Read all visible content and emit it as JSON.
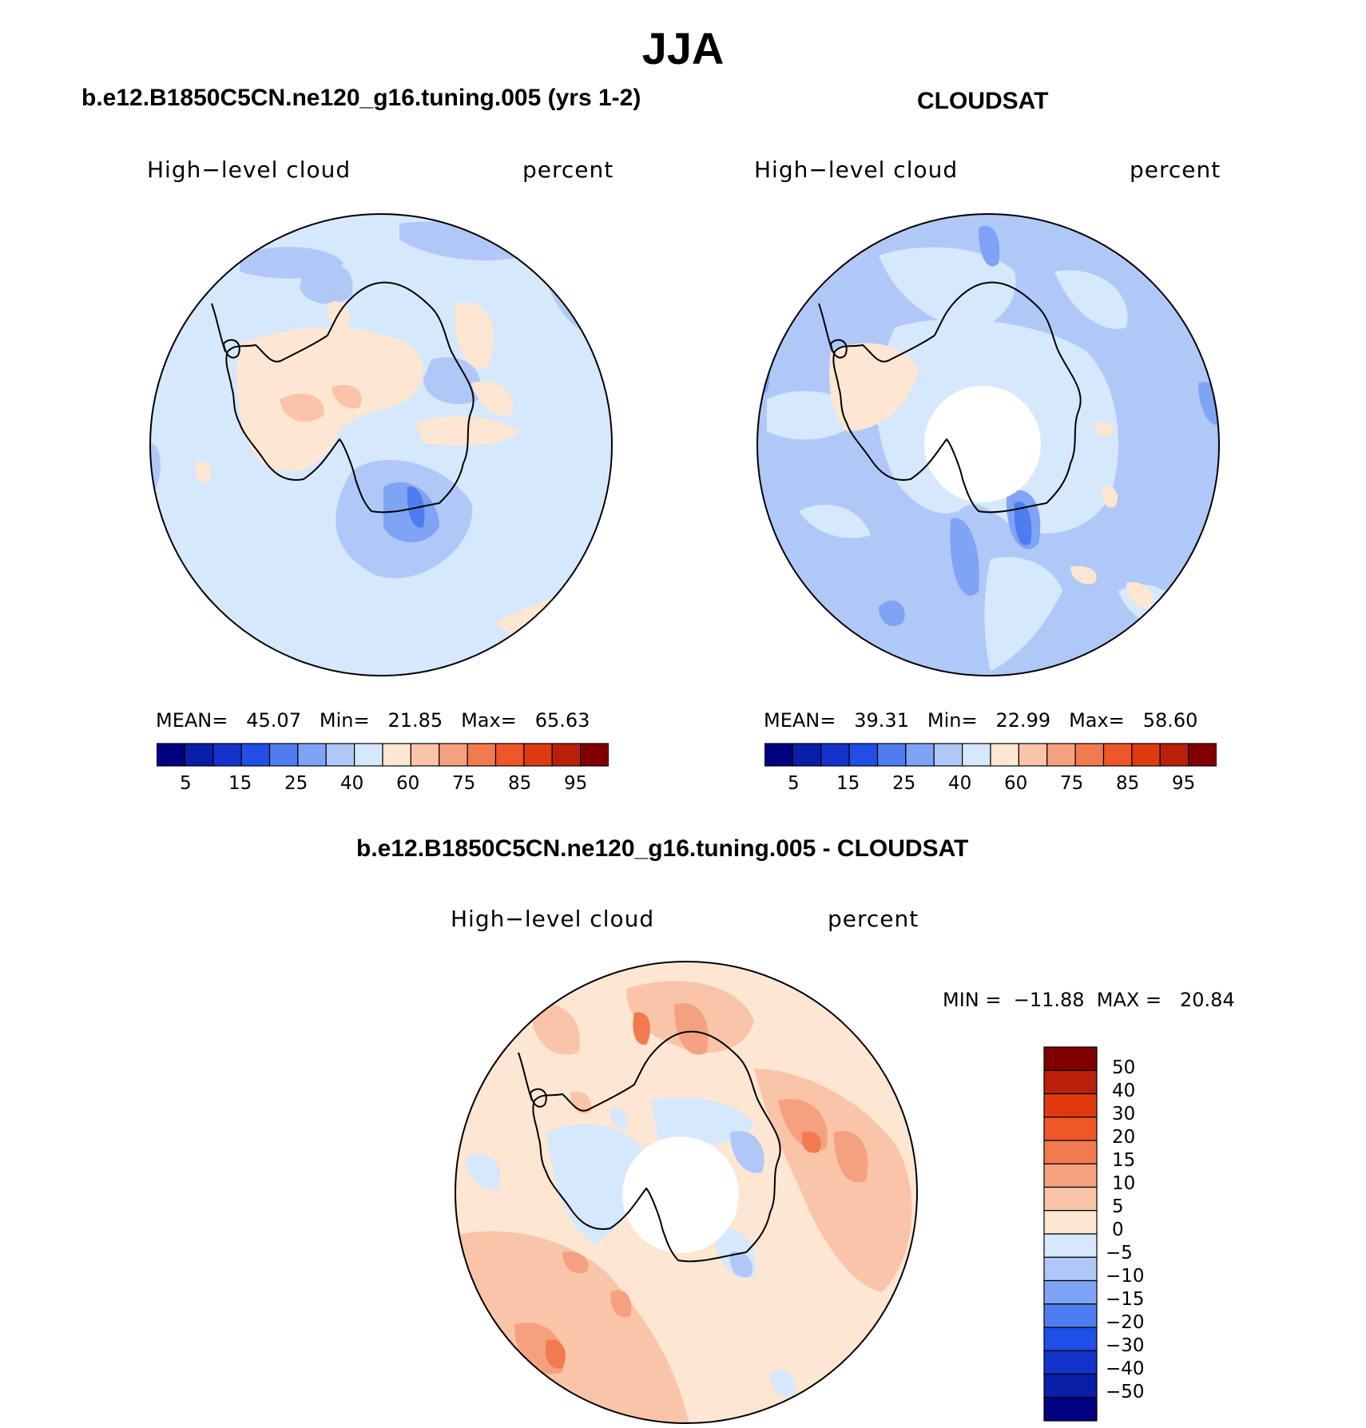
{
  "figure": {
    "season": "JJA"
  },
  "panels": {
    "model": {
      "title": "b.e12.B1850C5CN.ne120_g16.tuning.005 (yrs 1-2)",
      "variable": "High−level cloud",
      "units": "percent",
      "mean_label": "MEAN=",
      "mean_value": "45.07",
      "min_label": "Min=",
      "min_value": "21.85",
      "max_label": "Max=",
      "max_value": "65.63"
    },
    "obs": {
      "title": "CLOUDSAT",
      "variable": "High−level cloud",
      "units": "percent",
      "mean_label": "MEAN=",
      "mean_value": "39.31",
      "min_label": "Min=",
      "min_value": "22.99",
      "max_label": "Max=",
      "max_value": "58.60"
    },
    "diff": {
      "title": "b.e12.B1850C5CN.ne120_g16.tuning.005 - CLOUDSAT",
      "variable": "High−level cloud",
      "units": "percent",
      "minmax_text": "MIN =  −11.88  MAX =   20.84"
    }
  },
  "colorbars": {
    "abs": {
      "ticks": [
        "5",
        "15",
        "25",
        "40",
        "60",
        "75",
        "85",
        "95"
      ],
      "colors": [
        "#000080",
        "#0a1fa8",
        "#1433cc",
        "#1f4fe6",
        "#4d7df0",
        "#7fa3f5",
        "#b0c8f7",
        "#d6e8fb",
        "#fde6d2",
        "#f9c4a8",
        "#f5a180",
        "#f27a4f",
        "#ef5628",
        "#e03a10",
        "#b8200a",
        "#800000"
      ]
    },
    "diff": {
      "labels": [
        "50",
        "40",
        "30",
        "20",
        "15",
        "10",
        "5",
        "0",
        "−5",
        "−10",
        "−15",
        "−20",
        "−30",
        "−40",
        "−50"
      ],
      "colors": [
        "#800000",
        "#b8200a",
        "#e03a10",
        "#ef5628",
        "#f27a4f",
        "#f5a180",
        "#f9c4a8",
        "#fde6d2",
        "#d6e8fb",
        "#b0c8f7",
        "#7fa3f5",
        "#4d7df0",
        "#1f4fe6",
        "#1433cc",
        "#0a1fa8",
        "#000080"
      ]
    }
  },
  "map_colors": {
    "light_blue": "#d6e8fb",
    "mid_blue": "#b0c8f7",
    "blue": "#7fa3f5",
    "dark_blue": "#4d7df0",
    "light_orange": "#fde6d2",
    "orange": "#f9c4a8",
    "dark_orange": "#f5a180",
    "red_orange": "#f27a4f",
    "missing": "#ffffff",
    "coastline": "#000000"
  }
}
